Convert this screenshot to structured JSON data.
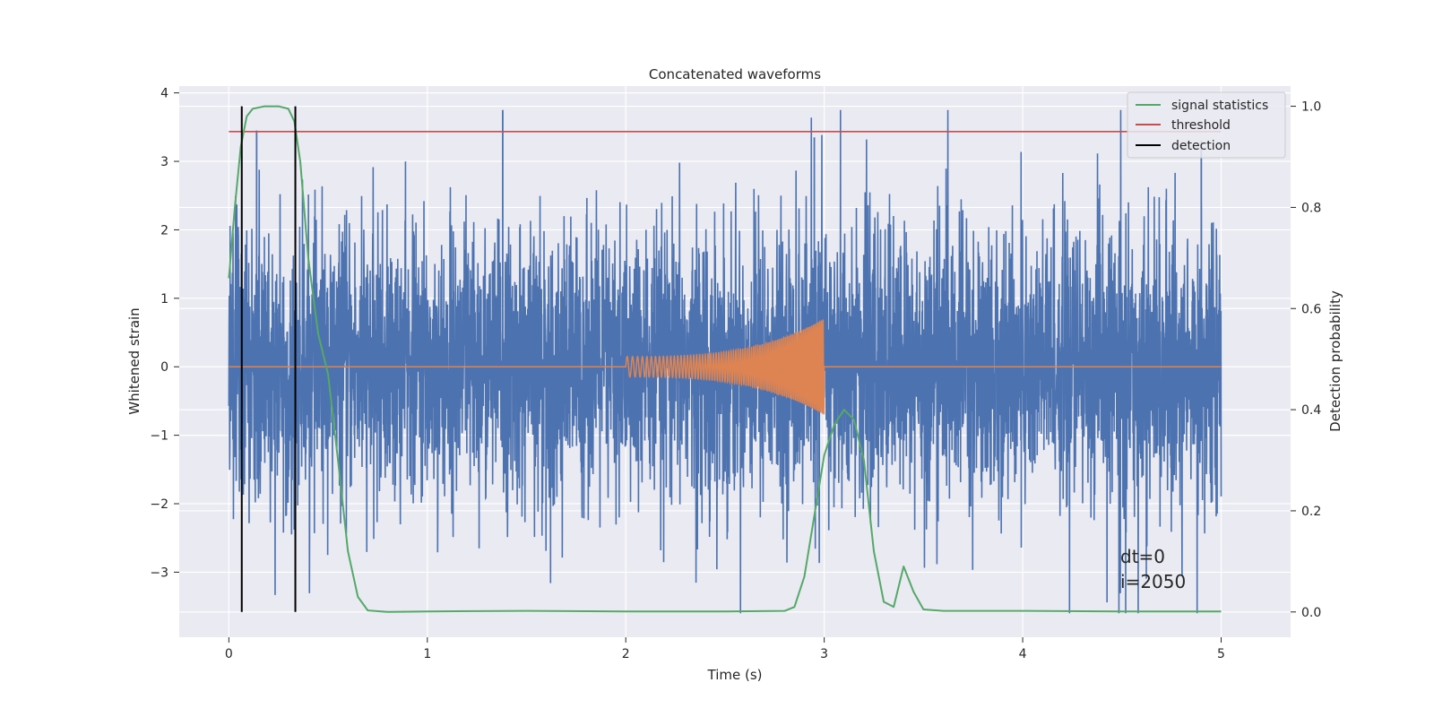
{
  "chart_data": {
    "type": "line",
    "title": "Concatenated waveforms",
    "xlabel": "Time (s)",
    "ylabel": "Whitened strain",
    "ylabel_right": "Detection probability",
    "xlim": [
      -0.25,
      5.35
    ],
    "ylim": [
      -3.95,
      4.1
    ],
    "ylim_right": [
      -0.05,
      1.04
    ],
    "x_ticks": [
      0,
      1,
      2,
      3,
      4,
      5
    ],
    "y_ticks": [
      4,
      3,
      2,
      1,
      0,
      -1,
      -2,
      -3
    ],
    "y_ticks_right": [
      1.0,
      0.8,
      0.6,
      0.4,
      0.2,
      0.0
    ],
    "grid": true,
    "legend_position": "top-right",
    "series": [
      {
        "name": "",
        "axis": "left",
        "color": "#4c72b0",
        "description_values": "whitened noise strain, samples roughly within [-3.6, 3.75], time 0 to 5 s",
        "notable_peaks": [
          [
            0.14,
            3.45
          ],
          [
            1.38,
            3.75
          ],
          [
            2.95,
            3.35
          ],
          [
            3.25,
            -1.5
          ],
          [
            4.9,
            3.3
          ]
        ],
        "x_range": [
          0,
          5
        ],
        "y_range": [
          -3.6,
          3.75
        ]
      },
      {
        "name": "",
        "axis": "left",
        "color": "#dd8452",
        "description_values": "injected chirp: zero except between 2.0 s and 3.0 s, amplitude growing from ~0.15 to ~0.7",
        "x_range": [
          2.0,
          3.0
        ],
        "amplitude_start": 0.15,
        "amplitude_end": 0.7
      },
      {
        "name": "signal statistics",
        "axis": "right",
        "color": "#55a868",
        "x": [
          0.0,
          0.03,
          0.06,
          0.09,
          0.12,
          0.18,
          0.25,
          0.3,
          0.33,
          0.36,
          0.4,
          0.45,
          0.5,
          0.55,
          0.6,
          0.65,
          0.7,
          0.8,
          1.0,
          1.5,
          2.0,
          2.5,
          2.8,
          2.85,
          2.9,
          2.95,
          3.0,
          3.05,
          3.1,
          3.15,
          3.2,
          3.25,
          3.3,
          3.35,
          3.4,
          3.45,
          3.5,
          3.6,
          4.0,
          4.5,
          5.0
        ],
        "y": [
          0.66,
          0.8,
          0.92,
          0.98,
          0.995,
          1.0,
          1.0,
          0.995,
          0.97,
          0.89,
          0.7,
          0.55,
          0.47,
          0.3,
          0.12,
          0.03,
          0.003,
          0.0,
          0.001,
          0.002,
          0.001,
          0.001,
          0.002,
          0.01,
          0.07,
          0.19,
          0.31,
          0.37,
          0.4,
          0.38,
          0.3,
          0.12,
          0.02,
          0.01,
          0.09,
          0.04,
          0.005,
          0.002,
          0.002,
          0.001,
          0.001
        ]
      },
      {
        "name": "threshold",
        "axis": "right",
        "color": "#c44e52",
        "x": [
          0,
          5
        ],
        "y": [
          0.95,
          0.95
        ]
      },
      {
        "name": "detection",
        "axis": "right",
        "color": "#000000",
        "type": "vlines",
        "x": [
          0.065,
          0.335
        ],
        "y_range": [
          0.0,
          1.0
        ]
      }
    ],
    "annotations": [
      {
        "text": "dt=0",
        "x": 4.5,
        "y": -2.85
      },
      {
        "text": "i=2050",
        "x": 4.5,
        "y": -3.2
      }
    ]
  }
}
